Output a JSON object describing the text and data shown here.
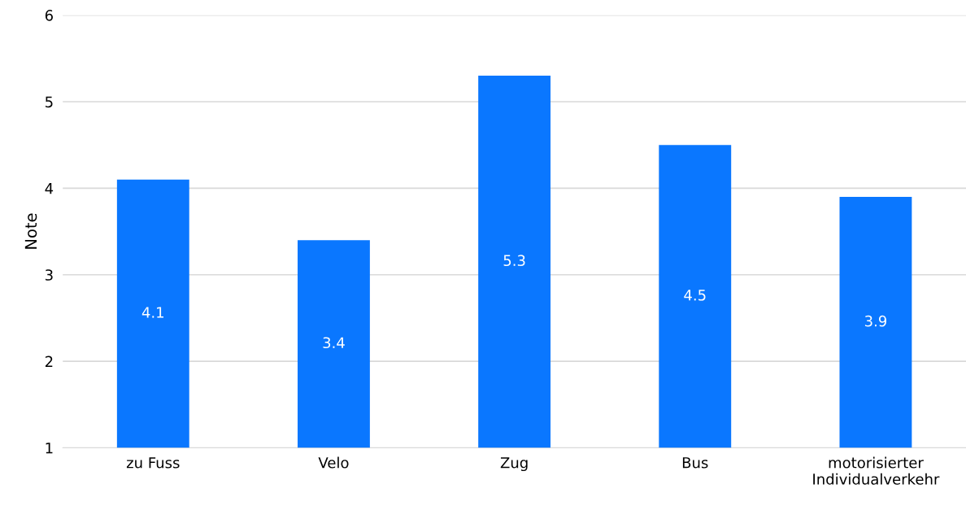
{
  "chart_data": {
    "type": "bar",
    "ylabel": "Note",
    "categories": [
      "zu Fuss",
      "Velo",
      "Zug",
      "Bus",
      "motorisierter\nIndividualverkehr"
    ],
    "values": [
      4.1,
      3.4,
      5.3,
      4.5,
      3.9
    ],
    "color": "#0a77ff",
    "ylim": [
      1,
      6
    ],
    "yticks": [
      1,
      2,
      3,
      4,
      5,
      6
    ],
    "grid": "y",
    "data_labels": true
  }
}
